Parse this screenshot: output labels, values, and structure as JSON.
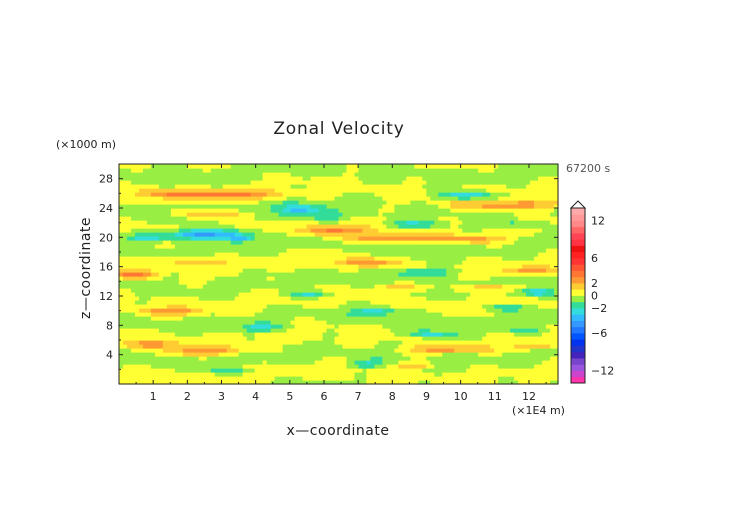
{
  "chart_data": {
    "type": "heatmap",
    "title": "Zonal Velocity",
    "xlabel": "x—coordinate",
    "ylabel": "z—coordinate",
    "x_unit": "(×1E4 m)",
    "y_unit": "(×1000 m)",
    "time_label": "67200 s",
    "xlim": [
      0,
      12.85
    ],
    "ylim": [
      0,
      30
    ],
    "x_ticks": [
      1,
      2,
      3,
      4,
      5,
      6,
      7,
      8,
      9,
      10,
      11,
      12
    ],
    "y_ticks": [
      4,
      8,
      12,
      16,
      20,
      24,
      28
    ],
    "colorbar": {
      "levels": [
        -14,
        -13,
        -12,
        -11,
        -10,
        -9,
        -8,
        -7,
        -6,
        -5,
        -4,
        -3,
        -2,
        -1,
        0,
        1,
        2,
        3,
        4,
        5,
        6,
        7,
        8,
        9,
        10,
        11,
        12,
        13,
        14
      ],
      "colors": [
        "#ff33aa",
        "#cc44cc",
        "#9955dd",
        "#7744cc",
        "#4422bb",
        "#2233cc",
        "#0033ee",
        "#0055ff",
        "#2277ff",
        "#3399ff",
        "#33bbff",
        "#33dddd",
        "#33dd99",
        "#99ee44",
        "#ffff33",
        "#ffcc33",
        "#ff9933",
        "#ff7733",
        "#ff5533",
        "#ff3333",
        "#ff2222",
        "#ee1111",
        "#ff3344",
        "#ff4455",
        "#ff6666",
        "#ff8888",
        "#ff9999",
        "#ffaaaa"
      ],
      "tick_values": [
        12,
        6,
        2,
        0,
        -2,
        -6,
        -12
      ],
      "tick_labels": [
        "12",
        "6",
        "2",
        "0",
        "−2",
        "−6",
        "−12"
      ]
    },
    "field_features": [
      {
        "type": "positive",
        "x": 1.8,
        "z": 26.0,
        "amp": 2.5,
        "sx": 1.2,
        "sz": 0.6
      },
      {
        "type": "positive",
        "x": 3.5,
        "z": 25.8,
        "amp": 2.6,
        "sx": 1.3,
        "sz": 0.6
      },
      {
        "type": "positive",
        "x": 11.5,
        "z": 24.5,
        "amp": 3.0,
        "sx": 1.6,
        "sz": 0.7
      },
      {
        "type": "negative",
        "x": 10.2,
        "z": 25.8,
        "amp": -3.5,
        "sx": 0.8,
        "sz": 0.6
      },
      {
        "type": "negative",
        "x": 5.3,
        "z": 23.7,
        "amp": -3.2,
        "sx": 0.7,
        "sz": 0.8
      },
      {
        "type": "negative",
        "x": 6.1,
        "z": 22.8,
        "amp": -2.2,
        "sx": 0.5,
        "sz": 0.6
      },
      {
        "type": "positive",
        "x": 2.8,
        "z": 23.2,
        "amp": 2.3,
        "sx": 1.0,
        "sz": 0.5
      },
      {
        "type": "positive",
        "x": 6.3,
        "z": 21.0,
        "amp": 3.3,
        "sx": 0.9,
        "sz": 0.6
      },
      {
        "type": "positive",
        "x": 7.8,
        "z": 20.0,
        "amp": 2.8,
        "sx": 1.3,
        "sz": 0.6
      },
      {
        "type": "positive",
        "x": 10.2,
        "z": 19.8,
        "amp": 2.4,
        "sx": 1.0,
        "sz": 0.5
      },
      {
        "type": "negative",
        "x": 2.5,
        "z": 20.5,
        "amp": -4.8,
        "sx": 1.1,
        "sz": 0.7
      },
      {
        "type": "negative",
        "x": 0.8,
        "z": 20.0,
        "amp": -2.8,
        "sx": 0.5,
        "sz": 0.5
      },
      {
        "type": "negative",
        "x": 3.5,
        "z": 19.9,
        "amp": -3.0,
        "sx": 0.4,
        "sz": 0.5
      },
      {
        "type": "negative",
        "x": 8.6,
        "z": 21.8,
        "amp": -2.3,
        "sx": 0.8,
        "sz": 0.5
      },
      {
        "type": "negative",
        "x": 11.6,
        "z": 21.8,
        "amp": -2.0,
        "sx": 0.6,
        "sz": 0.5
      },
      {
        "type": "positive",
        "x": 0.4,
        "z": 15.0,
        "amp": 2.8,
        "sx": 0.7,
        "sz": 0.6
      },
      {
        "type": "positive",
        "x": 2.3,
        "z": 16.8,
        "amp": 2.2,
        "sx": 0.8,
        "sz": 0.5
      },
      {
        "type": "positive",
        "x": 7.2,
        "z": 16.6,
        "amp": 2.5,
        "sx": 0.8,
        "sz": 0.5
      },
      {
        "type": "positive",
        "x": 12.0,
        "z": 15.5,
        "amp": 2.4,
        "sx": 0.8,
        "sz": 0.5
      },
      {
        "type": "negative",
        "x": 9.0,
        "z": 15.3,
        "amp": -2.6,
        "sx": 0.9,
        "sz": 0.6
      },
      {
        "type": "negative",
        "x": 12.3,
        "z": 12.6,
        "amp": -3.0,
        "sx": 0.5,
        "sz": 0.6
      },
      {
        "type": "negative",
        "x": 5.6,
        "z": 12.3,
        "amp": -2.3,
        "sx": 0.6,
        "sz": 0.5
      },
      {
        "type": "positive",
        "x": 8.2,
        "z": 13.2,
        "amp": 2.2,
        "sx": 0.7,
        "sz": 0.5
      },
      {
        "type": "positive",
        "x": 10.8,
        "z": 13.2,
        "amp": 2.4,
        "sx": 0.8,
        "sz": 0.5
      },
      {
        "type": "positive",
        "x": 1.6,
        "z": 10.0,
        "amp": 2.4,
        "sx": 1.0,
        "sz": 0.5
      },
      {
        "type": "negative",
        "x": 7.5,
        "z": 10.0,
        "amp": -2.6,
        "sx": 0.6,
        "sz": 0.6
      },
      {
        "type": "negative",
        "x": 11.4,
        "z": 10.5,
        "amp": -2.2,
        "sx": 0.6,
        "sz": 0.5
      },
      {
        "type": "negative",
        "x": 4.2,
        "z": 7.7,
        "amp": -2.3,
        "sx": 0.7,
        "sz": 0.5
      },
      {
        "type": "negative",
        "x": 9.2,
        "z": 6.8,
        "amp": -2.5,
        "sx": 0.7,
        "sz": 0.5
      },
      {
        "type": "negative",
        "x": 11.8,
        "z": 7.3,
        "amp": -2.1,
        "sx": 0.5,
        "sz": 0.5
      },
      {
        "type": "positive",
        "x": 1.0,
        "z": 5.5,
        "amp": 2.4,
        "sx": 0.8,
        "sz": 0.5
      },
      {
        "type": "positive",
        "x": 2.6,
        "z": 4.6,
        "amp": 2.8,
        "sx": 1.1,
        "sz": 0.6
      },
      {
        "type": "positive",
        "x": 9.6,
        "z": 4.8,
        "amp": 2.6,
        "sx": 1.1,
        "sz": 0.5
      },
      {
        "type": "positive",
        "x": 12.2,
        "z": 5.2,
        "amp": 2.3,
        "sx": 0.6,
        "sz": 0.5
      },
      {
        "type": "negative",
        "x": 7.2,
        "z": 2.8,
        "amp": -2.1,
        "sx": 0.5,
        "sz": 0.5
      },
      {
        "type": "positive",
        "x": 8.7,
        "z": 2.6,
        "amp": 2.1,
        "sx": 0.6,
        "sz": 0.4
      },
      {
        "type": "negative",
        "x": 3.2,
        "z": 1.8,
        "amp": -1.9,
        "sx": 0.6,
        "sz": 0.4
      }
    ]
  }
}
